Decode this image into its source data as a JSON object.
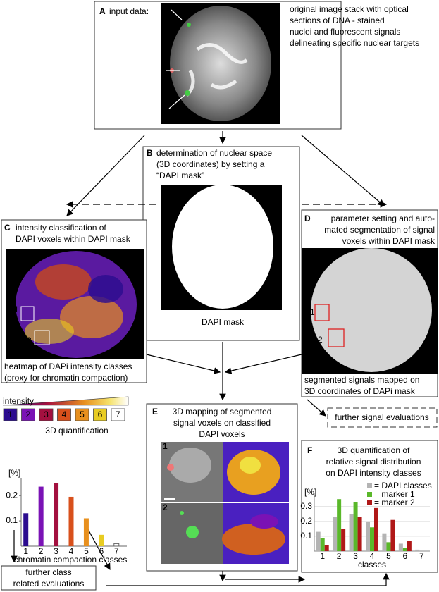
{
  "panel_a": {
    "label": "A",
    "title": "input data:",
    "text": [
      "original image stack with optical",
      "sections of DNA - stained",
      "nuclei and fluorescent signals",
      "delineating specific nuclear targets"
    ]
  },
  "panel_b": {
    "label": "B",
    "text": [
      "determination of nuclear space",
      "(3D coordinates) by setting a",
      "“DAPI mask”"
    ],
    "caption": "DAPI mask"
  },
  "panel_c": {
    "label": "C",
    "text": [
      "intensity classification of",
      "DAPI voxels within DAPI mask"
    ],
    "roi_labels": [
      "1",
      "2"
    ],
    "caption": [
      "heatmap of DAPi intensity classes",
      "(proxy for chromatin compaction)"
    ],
    "scale_label": "intensity",
    "chart": {
      "type": "bar",
      "title": "3D quantification",
      "y_label": "[%]",
      "x_label": "chromatin compaction classes",
      "categories": [
        "1",
        "2",
        "3",
        "4",
        "5",
        "6",
        "7"
      ],
      "values": [
        0.13,
        0.235,
        0.25,
        0.195,
        0.11,
        0.045,
        0.01
      ],
      "colors": [
        "#2b0c8f",
        "#7a12b5",
        "#a3103f",
        "#d8501c",
        "#e8901e",
        "#e8cc22",
        "#ffffff"
      ],
      "ylim": [
        0,
        0.27
      ],
      "yticks": [
        0.1,
        0.2
      ]
    }
  },
  "panel_d": {
    "label": "D",
    "text": [
      "parameter setting and auto-",
      "mated segmentation of signal",
      "voxels within DAPI mask"
    ],
    "roi_labels": [
      "1",
      "2"
    ],
    "caption": [
      "segmented signals mapped on",
      "3D coordinates of DAPi mask"
    ]
  },
  "panel_e": {
    "label": "E",
    "text": [
      "3D mapping of segmented",
      "signal voxels on classified",
      "DAPI voxels"
    ],
    "image_labels": [
      "1",
      "2"
    ]
  },
  "panel_f": {
    "label": "F",
    "text": [
      "3D quantification of",
      "relative signal distribution",
      "on DAPI intensity classes"
    ],
    "chart": {
      "type": "bar",
      "y_label": "[%]",
      "x_label": "classes",
      "categories": [
        "1",
        "2",
        "3",
        "4",
        "5",
        "6",
        "7"
      ],
      "grid": true,
      "series": [
        {
          "name": "= DAPI classes",
          "color": "#b4b4b4",
          "values": [
            0.13,
            0.23,
            0.25,
            0.2,
            0.12,
            0.05,
            0.01
          ]
        },
        {
          "name": "= marker 1",
          "color": "#5ab82a",
          "values": [
            0.09,
            0.35,
            0.33,
            0.16,
            0.06,
            0.02,
            0
          ]
        },
        {
          "name": "= marker 2",
          "color": "#b01818",
          "values": [
            0.04,
            0.15,
            0.23,
            0.29,
            0.21,
            0.07,
            0
          ]
        }
      ],
      "ylim": [
        0,
        0.37
      ],
      "yticks": [
        0.1,
        0.2,
        0.3
      ]
    }
  },
  "further_signal": "further signal evaluations",
  "further_class": [
    "further class",
    "related evaluations"
  ]
}
